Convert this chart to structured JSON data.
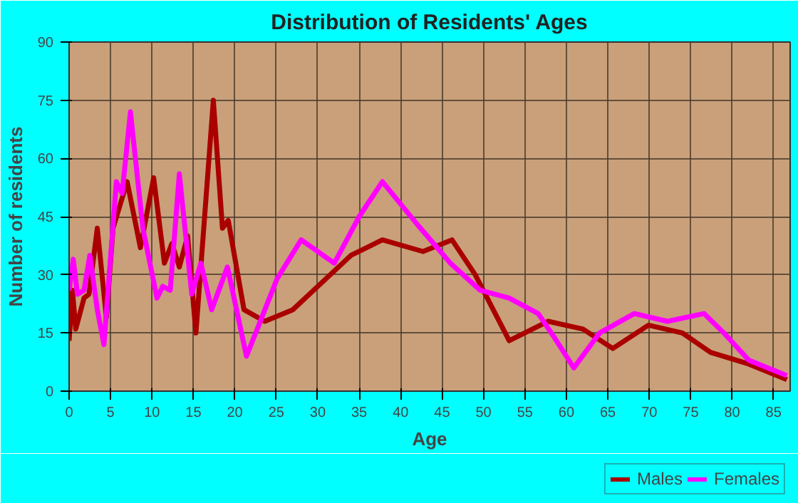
{
  "chart_data": {
    "type": "line",
    "title": "Distribution of Residents' Ages",
    "xlabel": "Age",
    "ylabel": "Number of residents",
    "xlim": [
      0,
      87
    ],
    "ylim": [
      0,
      90
    ],
    "xticks": [
      0,
      5,
      10,
      15,
      20,
      25,
      30,
      35,
      40,
      45,
      50,
      55,
      60,
      65,
      70,
      75,
      80,
      85
    ],
    "yticks": [
      0,
      15,
      30,
      45,
      60,
      75,
      90
    ],
    "grid": true,
    "legend": "bottom right",
    "marker": "none",
    "line_style": "solid",
    "series": [
      {
        "name": "Males",
        "color": "#aa0000",
        "x": [
          0,
          0.4,
          0.8,
          1.8,
          2.4,
          3.4,
          4.5,
          5.3,
          7.0,
          8.6,
          10.2,
          11.5,
          12.4,
          13.3,
          14.3,
          15.3,
          17.4,
          18.5,
          19.2,
          21.1,
          23.6,
          27,
          30,
          34,
          37.8,
          42.7,
          46.2,
          49,
          53.1,
          57.8,
          62,
          65.6,
          69.9,
          74,
          77.4,
          82,
          86.6
        ],
        "values": [
          13,
          26,
          16,
          24,
          25,
          42,
          19,
          42,
          54,
          37,
          55,
          33,
          38,
          32,
          40,
          15,
          75,
          42,
          44,
          21,
          18,
          21,
          27,
          35,
          39,
          36,
          39,
          30,
          13,
          18,
          16,
          11,
          17,
          15,
          10,
          7,
          3
        ]
      },
      {
        "name": "Females",
        "color": "#ff00ff",
        "x": [
          0,
          0.5,
          1.0,
          1.8,
          2.5,
          3.4,
          4.2,
          5.7,
          6.4,
          7.4,
          8.9,
          10.6,
          11.3,
          12.2,
          13.3,
          14.8,
          15.9,
          17.2,
          19.1,
          21.4,
          25.1,
          28,
          32,
          35,
          37.8,
          42,
          46,
          49.6,
          53.1,
          56.6,
          58.5,
          60.9,
          64,
          68.2,
          72.2,
          76.6,
          79,
          82,
          86.6
        ],
        "values": [
          26,
          34,
          25,
          26,
          35,
          21,
          12,
          54,
          51,
          72,
          42,
          24,
          27,
          26,
          56,
          25,
          33,
          21,
          32,
          9,
          29,
          39,
          33,
          45,
          54,
          43,
          33,
          26,
          24,
          20,
          14,
          6,
          15,
          20,
          18,
          20,
          15,
          8,
          4
        ]
      }
    ]
  }
}
